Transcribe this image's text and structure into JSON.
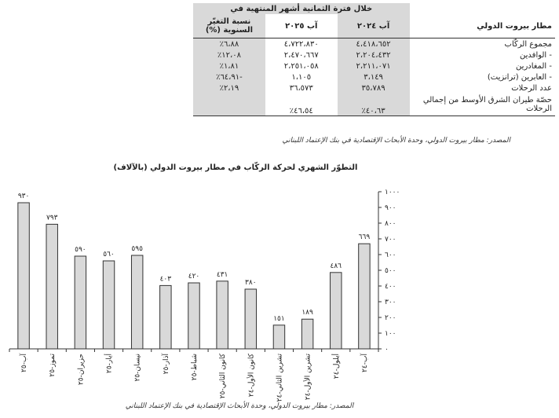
{
  "table": {
    "period_header": "خلال فترة الثمانية أشهر المنتهية في",
    "row_header": "مطار بيروت الدولي",
    "col_2024": "آب ٢٠٢٤",
    "col_2025": "آب ٢٠٢٥",
    "col_change": "نسبة التغيّر السنوية (%)",
    "rows": [
      {
        "label": "مجموع الركّاب",
        "v2024": "٤،٤١٨،٦٥٢",
        "v2025": "٤،٧٢٢،٨٣٠",
        "change": "٦،٨٨٪"
      },
      {
        "label": "- الوافدين",
        "v2024": "٢،٢٠٤،٤٣٢",
        "v2025": "٢،٤٧٠،٦٦٧",
        "change": "١٢،٠٨٪"
      },
      {
        "label": "- المغادرين",
        "v2024": "٢،٢١١،٠٧١",
        "v2025": "٢،٢٥١،٠٥٨",
        "change": "١،٨١٪"
      },
      {
        "label": "- العابرين (ترانزيت)",
        "v2024": "٣،١٤٩",
        "v2025": "١،١٠٥",
        "change": "-٦٤،٩١٪"
      },
      {
        "label": "عدد الرحلات",
        "v2024": "٣٥،٧٨٩",
        "v2025": "٣٦،٥٧٣",
        "change": "٢،١٩٪"
      },
      {
        "label": "حصّة طيران الشرق الأوسط من إجمالي الرحلات",
        "v2024": "٤٠،٦٣٪",
        "v2025": "٤٦،٥٤٪",
        "change": ""
      }
    ]
  },
  "table_source": "المصدر: مطار بيروت الدولي، وحدة الأبحاث الإقتصادية في بنك الإعتماد اللبناني",
  "chart_source": "المصدر: مطار بيروت الدولي، وحدة الأبحاث الإقتصادية في بنك الإعتماد اللبناني",
  "chart_data": {
    "type": "bar",
    "title": "التطوّر الشهري لحركة الركّاب في مطار بيروت الدولي (بالآلاف)",
    "categories": [
      "آب-٢٥",
      "تموز-٢٥",
      "حزيران-٢٥",
      "أيار-٢٥",
      "نيسان-٢٥",
      "آذار-٢٥",
      "شباط-٢٥",
      "كانون الثاني-٢٥",
      "كانون الأول-٢٤",
      "تشرين الثاني-٢٤",
      "تشرين الأول-٢٤",
      "أيلول-٢٤",
      "آب-٢٤"
    ],
    "values": [
      930,
      793,
      590,
      560,
      595,
      403,
      420,
      431,
      380,
      151,
      189,
      486,
      669
    ],
    "value_labels": [
      "٩٣٠",
      "٧٩٣",
      "٥٩٠",
      "٥٦٠",
      "٥٩٥",
      "٤٠٣",
      "٤٢٠",
      "٤٣١",
      "٣٨٠",
      "١٥١",
      "١٨٩",
      "٤٨٦",
      "٦٦٩"
    ],
    "yticks": [
      "٠",
      "١٠٠",
      "٢٠٠",
      "٣٠٠",
      "٤٠٠",
      "٥٠٠",
      "٦٠٠",
      "٧٠٠",
      "٨٠٠",
      "٩٠٠",
      "١٠٠٠"
    ],
    "ylim": [
      0,
      1000
    ],
    "axis_side": "right",
    "bar_color": "#d9d9d9",
    "grid": false
  }
}
